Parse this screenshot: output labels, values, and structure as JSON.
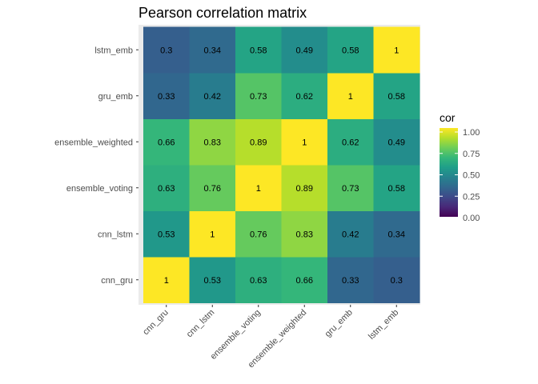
{
  "chart_data": {
    "type": "heatmap",
    "title": "Pearson correlation matrix",
    "xlabel": "",
    "ylabel": "",
    "x_categories": [
      "cnn_gru",
      "cnn_lstm",
      "ensemble_voting",
      "ensemble_weighted",
      "gru_emb",
      "lstm_emb"
    ],
    "y_categories": [
      "cnn_gru",
      "cnn_lstm",
      "ensemble_voting",
      "ensemble_weighted",
      "gru_emb",
      "lstm_emb"
    ],
    "values": [
      [
        1,
        0.53,
        0.63,
        0.66,
        0.33,
        0.3
      ],
      [
        0.53,
        1,
        0.76,
        0.83,
        0.42,
        0.34
      ],
      [
        0.63,
        0.76,
        1,
        0.89,
        0.73,
        0.58
      ],
      [
        0.66,
        0.83,
        0.89,
        1,
        0.62,
        0.49
      ],
      [
        0.33,
        0.42,
        0.73,
        0.62,
        1,
        0.58
      ],
      [
        0.3,
        0.34,
        0.58,
        0.49,
        0.58,
        1
      ]
    ],
    "cell_labels": [
      [
        "1",
        "0.53",
        "0.63",
        "0.66",
        "0.33",
        "0.3"
      ],
      [
        "0.53",
        "1",
        "0.76",
        "0.83",
        "0.42",
        "0.34"
      ],
      [
        "0.63",
        "0.76",
        "1",
        "0.89",
        "0.73",
        "0.58"
      ],
      [
        "0.66",
        "0.83",
        "0.89",
        "1",
        "0.62",
        "0.49"
      ],
      [
        "0.33",
        "0.42",
        "0.73",
        "0.62",
        "1",
        "0.58"
      ],
      [
        "0.3",
        "0.34",
        "0.58",
        "0.49",
        "0.58",
        "1"
      ]
    ],
    "legend": {
      "title": "cor",
      "ticks": [
        0,
        0.25,
        0.5,
        0.75,
        1
      ],
      "tick_labels": [
        "0.00",
        "0.25",
        "0.50",
        "0.75",
        "1.00"
      ],
      "range": [
        0,
        1
      ],
      "placement": "right"
    },
    "colormap": "viridis",
    "panel_background": "#ebebeb"
  }
}
